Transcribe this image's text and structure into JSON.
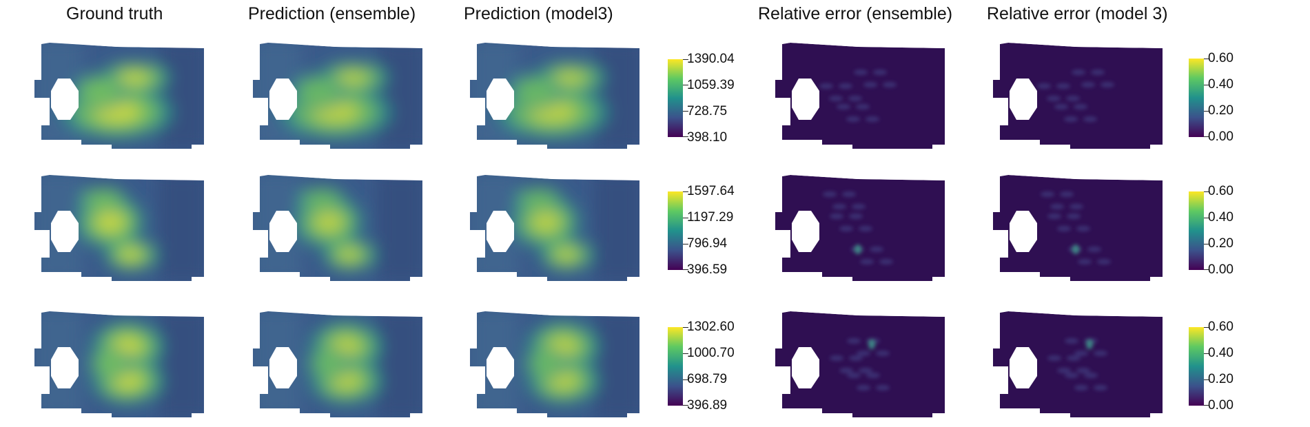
{
  "columns": {
    "ground_truth": "Ground truth",
    "pred_ensemble": "Prediction (ensemble)",
    "pred_model3": "Prediction (model3)",
    "err_ensemble": "Relative error (ensemble)",
    "err_model3": "Relative error (model 3)"
  },
  "colormap": {
    "name": "viridis",
    "stops": [
      "#440154",
      "#3b528b",
      "#21918c",
      "#5ec962",
      "#fde725"
    ]
  },
  "rows": [
    {
      "value_colorbar": {
        "labels": [
          "1390.04",
          "1059.39",
          "728.75",
          "398.10"
        ]
      },
      "error_colorbar": {
        "labels": [
          "0.60",
          "0.40",
          "0.20",
          "0.00"
        ]
      }
    },
    {
      "value_colorbar": {
        "labels": [
          "1597.64",
          "1197.29",
          "796.94",
          "396.59"
        ]
      },
      "error_colorbar": {
        "labels": [
          "0.60",
          "0.40",
          "0.20",
          "0.00"
        ]
      }
    },
    {
      "value_colorbar": {
        "labels": [
          "1302.60",
          "1000.70",
          "698.79",
          "396.89"
        ]
      },
      "error_colorbar": {
        "labels": [
          "0.60",
          "0.40",
          "0.20",
          "0.00"
        ]
      }
    }
  ]
}
